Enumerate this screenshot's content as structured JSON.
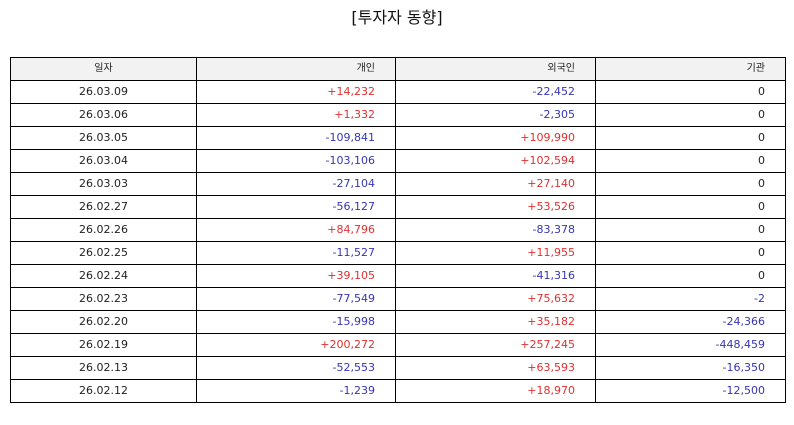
{
  "title": "[투자자 동향]",
  "colors": {
    "positive": "#e03030",
    "negative": "#3535b5",
    "neutral": "#222222",
    "header_bg": "#f2f2f2"
  },
  "table": {
    "headers": [
      "일자",
      "개인",
      "외국인",
      "기관"
    ],
    "rows": [
      [
        "26.03.09",
        "+14,232",
        "-22,452",
        "0"
      ],
      [
        "26.03.06",
        "+1,332",
        "-2,305",
        "0"
      ],
      [
        "26.03.05",
        "-109,841",
        "+109,990",
        "0"
      ],
      [
        "26.03.04",
        "-103,106",
        "+102,594",
        "0"
      ],
      [
        "26.03.03",
        "-27,104",
        "+27,140",
        "0"
      ],
      [
        "26.02.27",
        "-56,127",
        "+53,526",
        "0"
      ],
      [
        "26.02.26",
        "+84,796",
        "-83,378",
        "0"
      ],
      [
        "26.02.25",
        "-11,527",
        "+11,955",
        "0"
      ],
      [
        "26.02.24",
        "+39,105",
        "-41,316",
        "0"
      ],
      [
        "26.02.23",
        "-77,549",
        "+75,632",
        "-2"
      ],
      [
        "26.02.20",
        "-15,998",
        "+35,182",
        "-24,366"
      ],
      [
        "26.02.19",
        "+200,272",
        "+257,245",
        "-448,459"
      ],
      [
        "26.02.13",
        "-52,553",
        "+63,593",
        "-16,350"
      ],
      [
        "26.02.12",
        "-1,239",
        "+18,970",
        "-12,500"
      ]
    ]
  }
}
